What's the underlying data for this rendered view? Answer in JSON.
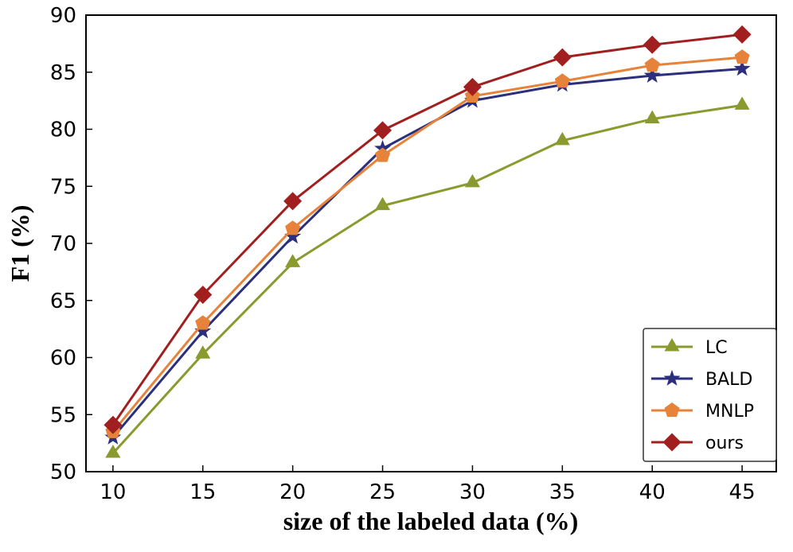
{
  "chart_data": {
    "type": "line",
    "x_label": "size of the labeled data (%)",
    "y_label": "F1 (%)",
    "x": [
      10,
      15,
      20,
      25,
      30,
      35,
      40,
      45
    ],
    "series": [
      {
        "name": "LC",
        "color": "#8a9a2e",
        "marker": "triangle",
        "values": [
          51.6,
          60.3,
          68.3,
          73.3,
          75.3,
          79.0,
          80.9,
          82.1
        ]
      },
      {
        "name": "BALD",
        "color": "#2b2f7c",
        "marker": "star",
        "values": [
          53.0,
          62.3,
          70.6,
          78.3,
          82.5,
          83.9,
          84.7,
          85.3
        ]
      },
      {
        "name": "MNLP",
        "color": "#e7823a",
        "marker": "pentagon",
        "values": [
          53.5,
          63.0,
          71.3,
          77.7,
          82.9,
          84.2,
          85.6,
          86.3
        ]
      },
      {
        "name": "ours",
        "color": "#a11f1f",
        "marker": "diamond",
        "values": [
          54.1,
          65.5,
          73.7,
          79.9,
          83.7,
          86.3,
          87.4,
          88.3
        ]
      }
    ],
    "xlim": [
      8.5,
      46.9
    ],
    "xticks": [
      10,
      15,
      20,
      25,
      30,
      35,
      40,
      45
    ],
    "ylim": [
      50,
      90
    ],
    "yticks": [
      50,
      55,
      60,
      65,
      70,
      75,
      80,
      85,
      90
    ],
    "legend": "lower right"
  }
}
